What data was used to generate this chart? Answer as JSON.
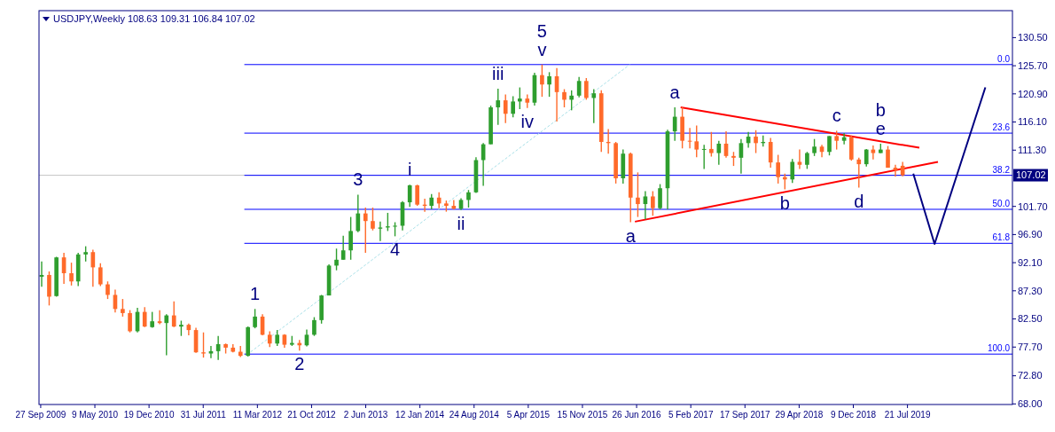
{
  "chart_data": {
    "type": "candlestick",
    "title": "USDJPY,Weekly  108.63 109.31 106.84 107.02",
    "x": [
      "2009-10",
      "2009-11",
      "2009-12",
      "2010-01",
      "2010-02",
      "2010-03",
      "2010-04",
      "2010-05",
      "2010-06",
      "2010-07",
      "2010-08",
      "2010-09",
      "2010-10",
      "2010-11",
      "2010-12",
      "2011-01",
      "2011-02",
      "2011-03",
      "2011-04",
      "2011-05",
      "2011-06",
      "2011-07",
      "2011-08",
      "2011-09",
      "2011-10",
      "2011-11",
      "2011-12",
      "2012-01",
      "2012-02",
      "2012-03",
      "2012-04",
      "2012-05",
      "2012-06",
      "2012-07",
      "2012-08",
      "2012-09",
      "2012-10",
      "2012-11",
      "2012-12",
      "2013-01",
      "2013-02",
      "2013-03",
      "2013-04",
      "2013-05",
      "2013-06",
      "2013-07",
      "2013-08",
      "2013-09",
      "2013-10",
      "2013-11",
      "2013-12",
      "2014-01",
      "2014-02",
      "2014-03",
      "2014-04",
      "2014-05",
      "2014-06",
      "2014-07",
      "2014-08",
      "2014-09",
      "2014-10",
      "2014-11",
      "2014-12",
      "2015-01",
      "2015-02",
      "2015-03",
      "2015-04",
      "2015-05",
      "2015-06",
      "2015-07",
      "2015-08",
      "2015-09",
      "2015-10",
      "2015-11",
      "2015-12",
      "2016-01",
      "2016-02",
      "2016-03",
      "2016-04",
      "2016-05",
      "2016-06",
      "2016-07",
      "2016-08",
      "2016-09",
      "2016-10",
      "2016-11",
      "2016-12",
      "2017-01",
      "2017-02",
      "2017-03",
      "2017-04",
      "2017-05",
      "2017-06",
      "2017-07",
      "2017-08",
      "2017-09",
      "2017-10",
      "2017-11",
      "2017-12",
      "2018-01",
      "2018-02",
      "2018-03",
      "2018-04",
      "2018-05",
      "2018-06",
      "2018-07",
      "2018-08",
      "2018-09",
      "2018-10",
      "2018-11",
      "2018-12",
      "2019-01",
      "2019-02",
      "2019-03",
      "2019-04",
      "2019-05",
      "2019-06",
      "2019-07"
    ],
    "ohlc": [
      [
        89.7,
        92.3,
        88.0,
        90.0
      ],
      [
        90.0,
        90.6,
        84.8,
        86.3
      ],
      [
        86.4,
        93.1,
        86.3,
        93.0
      ],
      [
        93.0,
        93.8,
        88.5,
        90.3
      ],
      [
        90.3,
        92.1,
        88.2,
        88.9
      ],
      [
        88.9,
        93.8,
        88.1,
        93.5
      ],
      [
        93.5,
        94.9,
        92.3,
        93.9
      ],
      [
        93.9,
        94.3,
        88.0,
        91.3
      ],
      [
        91.3,
        92.0,
        88.1,
        88.4
      ],
      [
        88.4,
        88.9,
        85.9,
        86.6
      ],
      [
        86.6,
        87.5,
        83.6,
        84.2
      ],
      [
        84.2,
        85.9,
        82.9,
        83.5
      ],
      [
        83.5,
        84.0,
        80.2,
        80.4
      ],
      [
        80.4,
        84.4,
        80.2,
        83.7
      ],
      [
        83.7,
        84.5,
        81.1,
        81.2
      ],
      [
        81.1,
        83.7,
        81.0,
        82.1
      ],
      [
        82.1,
        84.0,
        81.6,
        81.8
      ],
      [
        81.8,
        83.3,
        76.3,
        83.1
      ],
      [
        83.1,
        85.5,
        81.1,
        81.2
      ],
      [
        81.2,
        82.2,
        79.6,
        81.5
      ],
      [
        81.5,
        81.7,
        79.7,
        80.6
      ],
      [
        80.6,
        81.0,
        76.7,
        76.8
      ],
      [
        76.8,
        80.2,
        75.9,
        76.6
      ],
      [
        76.6,
        77.9,
        75.8,
        77.0
      ],
      [
        77.0,
        79.6,
        75.5,
        78.2
      ],
      [
        78.2,
        78.3,
        76.6,
        77.6
      ],
      [
        77.6,
        78.2,
        76.8,
        76.9
      ],
      [
        76.9,
        77.9,
        76.0,
        76.2
      ],
      [
        76.2,
        81.2,
        76.1,
        81.1
      ],
      [
        81.1,
        84.2,
        80.9,
        82.9
      ],
      [
        82.9,
        83.3,
        79.7,
        79.8
      ],
      [
        79.8,
        80.4,
        77.7,
        78.3
      ],
      [
        78.3,
        80.6,
        77.9,
        79.8
      ],
      [
        79.8,
        79.9,
        77.6,
        78.1
      ],
      [
        78.1,
        79.6,
        77.9,
        78.4
      ],
      [
        78.4,
        78.9,
        77.1,
        78.0
      ],
      [
        78.0,
        80.7,
        77.8,
        79.8
      ],
      [
        79.8,
        82.8,
        79.6,
        82.3
      ],
      [
        82.3,
        86.6,
        81.7,
        86.5
      ],
      [
        86.5,
        91.8,
        86.5,
        91.6
      ],
      [
        91.6,
        94.5,
        90.8,
        92.6
      ],
      [
        92.6,
        96.7,
        92.6,
        94.2
      ],
      [
        94.2,
        99.9,
        92.6,
        97.5
      ],
      [
        97.5,
        103.7,
        97.3,
        100.5
      ],
      [
        100.5,
        101.5,
        93.8,
        99.2
      ],
      [
        99.2,
        101.5,
        97.6,
        97.9
      ],
      [
        97.9,
        99.1,
        95.8,
        98.1
      ],
      [
        98.1,
        100.6,
        97.5,
        98.3
      ],
      [
        98.3,
        99.0,
        96.6,
        98.4
      ],
      [
        98.4,
        102.6,
        97.6,
        102.4
      ],
      [
        102.4,
        105.4,
        101.6,
        105.3
      ],
      [
        105.3,
        105.4,
        101.8,
        102.0
      ],
      [
        102.0,
        103.0,
        100.8,
        101.8
      ],
      [
        101.8,
        103.8,
        101.2,
        103.2
      ],
      [
        103.2,
        104.1,
        101.4,
        102.2
      ],
      [
        102.2,
        102.7,
        100.8,
        101.8
      ],
      [
        101.8,
        102.8,
        101.2,
        101.3
      ],
      [
        101.3,
        103.1,
        101.1,
        102.8
      ],
      [
        102.8,
        104.5,
        101.5,
        104.1
      ],
      [
        104.1,
        110.1,
        104.0,
        109.6
      ],
      [
        109.6,
        112.5,
        105.2,
        112.3
      ],
      [
        112.3,
        118.9,
        112.3,
        118.6
      ],
      [
        118.6,
        121.8,
        115.6,
        119.8
      ],
      [
        119.8,
        120.8,
        115.9,
        117.5
      ],
      [
        117.5,
        120.5,
        116.9,
        119.6
      ],
      [
        119.6,
        122.0,
        118.3,
        120.1
      ],
      [
        120.1,
        120.8,
        118.5,
        119.4
      ],
      [
        119.4,
        124.5,
        118.9,
        124.1
      ],
      [
        124.1,
        125.9,
        120.4,
        122.5
      ],
      [
        122.5,
        124.6,
        120.4,
        123.9
      ],
      [
        123.9,
        125.3,
        116.2,
        121.2
      ],
      [
        121.2,
        121.7,
        118.6,
        119.9
      ],
      [
        119.9,
        121.5,
        118.1,
        120.6
      ],
      [
        120.6,
        123.8,
        120.3,
        123.1
      ],
      [
        123.1,
        123.6,
        119.9,
        120.2
      ],
      [
        120.2,
        121.7,
        115.9,
        121.0
      ],
      [
        121.0,
        121.5,
        111.0,
        112.7
      ],
      [
        112.7,
        114.9,
        110.7,
        112.5
      ],
      [
        112.5,
        112.7,
        105.6,
        106.5
      ],
      [
        106.5,
        111.4,
        105.6,
        110.7
      ],
      [
        110.7,
        110.9,
        99.0,
        103.2
      ],
      [
        103.2,
        107.5,
        99.9,
        102.1
      ],
      [
        102.1,
        104.3,
        99.5,
        103.4
      ],
      [
        103.4,
        104.3,
        100.1,
        101.4
      ],
      [
        101.4,
        105.5,
        101.2,
        104.8
      ],
      [
        104.8,
        114.8,
        101.2,
        114.5
      ],
      [
        114.5,
        118.6,
        112.9,
        117.0
      ],
      [
        117.0,
        118.6,
        111.6,
        112.9
      ],
      [
        112.9,
        115.1,
        111.6,
        112.8
      ],
      [
        112.8,
        115.5,
        110.1,
        111.4
      ],
      [
        111.4,
        112.2,
        108.1,
        111.5
      ],
      [
        111.5,
        114.4,
        110.2,
        110.8
      ],
      [
        110.8,
        112.9,
        108.8,
        112.4
      ],
      [
        112.4,
        114.5,
        110.0,
        110.3
      ],
      [
        110.3,
        111.0,
        108.6,
        110.0
      ],
      [
        110.0,
        113.2,
        107.3,
        112.5
      ],
      [
        112.5,
        114.4,
        111.7,
        113.6
      ],
      [
        113.6,
        114.7,
        110.8,
        112.5
      ],
      [
        112.5,
        113.8,
        111.9,
        112.7
      ],
      [
        112.7,
        113.4,
        108.3,
        109.2
      ],
      [
        109.2,
        110.5,
        105.6,
        106.7
      ],
      [
        106.7,
        107.3,
        104.6,
        106.3
      ],
      [
        106.3,
        109.8,
        105.7,
        109.3
      ],
      [
        109.3,
        111.4,
        108.1,
        108.8
      ],
      [
        108.8,
        111.0,
        108.1,
        110.8
      ],
      [
        110.8,
        113.2,
        110.3,
        111.9
      ],
      [
        111.9,
        112.2,
        110.1,
        111.0
      ],
      [
        111.0,
        113.7,
        110.4,
        113.7
      ],
      [
        113.7,
        114.6,
        111.4,
        112.9
      ],
      [
        112.9,
        114.2,
        112.3,
        113.5
      ],
      [
        113.5,
        113.8,
        109.5,
        109.7
      ],
      [
        109.7,
        110.0,
        104.9,
        108.9
      ],
      [
        108.9,
        111.5,
        108.5,
        111.4
      ],
      [
        111.4,
        112.1,
        109.7,
        110.8
      ],
      [
        110.8,
        112.4,
        110.8,
        111.4
      ],
      [
        111.4,
        112.0,
        108.3,
        108.3
      ],
      [
        108.3,
        108.8,
        106.8,
        107.9
      ],
      [
        108.63,
        109.31,
        106.84,
        107.02
      ]
    ],
    "colors": [
      "#2e9e2e",
      "#ff6a2a",
      "#2e9e2e",
      "#ff6a2a",
      "#ff6a2a",
      "#2e9e2e",
      "#2e9e2e",
      "#ff6a2a",
      "#ff6a2a",
      "#ff6a2a",
      "#ff6a2a",
      "#ff6a2a",
      "#ff6a2a",
      "#2e9e2e",
      "#ff6a2a",
      "#2e9e2e",
      "#ff6a2a",
      "#2e9e2e",
      "#ff6a2a",
      "#2e9e2e",
      "#ff6a2a",
      "#ff6a2a",
      "#ff6a2a",
      "#2e9e2e",
      "#2e9e2e",
      "#ff6a2a",
      "#ff6a2a",
      "#ff6a2a",
      "#2e9e2e",
      "#2e9e2e",
      "#ff6a2a",
      "#ff6a2a",
      "#2e9e2e",
      "#ff6a2a",
      "#2e9e2e",
      "#ff6a2a",
      "#2e9e2e",
      "#2e9e2e",
      "#2e9e2e",
      "#2e9e2e",
      "#2e9e2e",
      "#2e9e2e",
      "#2e9e2e",
      "#2e9e2e",
      "#ff6a2a",
      "#ff6a2a",
      "#2e9e2e",
      "#2e9e2e",
      "#2e9e2e",
      "#2e9e2e",
      "#2e9e2e",
      "#ff6a2a",
      "#ff6a2a",
      "#2e9e2e",
      "#ff6a2a",
      "#ff6a2a",
      "#ff6a2a",
      "#2e9e2e",
      "#2e9e2e",
      "#2e9e2e",
      "#2e9e2e",
      "#2e9e2e",
      "#2e9e2e",
      "#ff6a2a",
      "#2e9e2e",
      "#2e9e2e",
      "#ff6a2a",
      "#2e9e2e",
      "#ff6a2a",
      "#2e9e2e",
      "#ff6a2a",
      "#ff6a2a",
      "#2e9e2e",
      "#2e9e2e",
      "#ff6a2a",
      "#2e9e2e",
      "#ff6a2a",
      "#ff6a2a",
      "#ff6a2a",
      "#2e9e2e",
      "#ff6a2a",
      "#ff6a2a",
      "#2e9e2e",
      "#ff6a2a",
      "#2e9e2e",
      "#2e9e2e",
      "#2e9e2e",
      "#ff6a2a",
      "#ff6a2a",
      "#ff6a2a",
      "#2e9e2e",
      "#ff6a2a",
      "#2e9e2e",
      "#ff6a2a",
      "#ff6a2a",
      "#2e9e2e",
      "#2e9e2e",
      "#ff6a2a",
      "#2e9e2e",
      "#ff6a2a",
      "#ff6a2a",
      "#ff6a2a",
      "#2e9e2e",
      "#ff6a2a",
      "#2e9e2e",
      "#2e9e2e",
      "#ff6a2a",
      "#2e9e2e",
      "#ff6a2a",
      "#2e9e2e",
      "#ff6a2a",
      "#ff6a2a",
      "#2e9e2e",
      "#ff6a2a",
      "#2e9e2e",
      "#ff6a2a",
      "#ff6a2a",
      "#ff6a2a"
    ],
    "series": [
      {
        "type": "line",
        "color": "#a8e0e8",
        "line_style": "dashed",
        "x": [
          "2012-01-31",
          "2016-05-29"
        ],
        "values": [
          76.5,
          125.9
        ]
      },
      {
        "type": "line",
        "color": "#ff0000",
        "x": [
          "2016-12-25",
          "2019-09-08"
        ],
        "values": [
          118.6,
          111.7
        ]
      },
      {
        "type": "line",
        "color": "#ff0000",
        "x": [
          "2016-06-19",
          "2019-11-24"
        ],
        "values": [
          99.1,
          109.3
        ]
      },
      {
        "type": "line",
        "color": "#000080",
        "x": [
          "2019-08-14",
          "2019-11-10",
          "2020-06-07"
        ],
        "values": [
          107.3,
          95.3,
          122.0
        ]
      },
      {
        "type": "line",
        "color": "#0000ff",
        "x": [
          "2012-01-17",
          "2020-09-27"
        ],
        "values": [
          125.9,
          125.9
        ]
      },
      {
        "type": "line",
        "color": "#0000ff",
        "x": [
          "2012-01-17",
          "2020-09-27"
        ],
        "values": [
          114.2,
          114.2
        ]
      },
      {
        "type": "line",
        "color": "#0000ff",
        "x": [
          "2012-01-17",
          "2020-09-27"
        ],
        "values": [
          107.0,
          107.0
        ]
      },
      {
        "type": "line",
        "color": "#0000ff",
        "x": [
          "2012-01-17",
          "2020-09-27"
        ],
        "values": [
          101.2,
          101.2
        ]
      },
      {
        "type": "line",
        "color": "#0000ff",
        "x": [
          "2012-01-17",
          "2020-09-27"
        ],
        "values": [
          95.4,
          95.4
        ]
      },
      {
        "type": "line",
        "color": "#0000ff",
        "x": [
          "2012-01-17",
          "2020-09-27"
        ],
        "values": [
          76.5,
          76.5
        ]
      }
    ],
    "ref_lines": [
      {
        "axis": "y",
        "value": 107.02,
        "label": "107.02",
        "color": "#c8c8c8"
      }
    ],
    "annotations": [
      {
        "text": "0.0",
        "x": "2020-09-27",
        "y": 125.9
      },
      {
        "text": "23.6",
        "x": "2020-09-27",
        "y": 114.2
      },
      {
        "text": "38.2",
        "x": "2020-09-27",
        "y": 107.0
      },
      {
        "text": "50.0",
        "x": "2020-09-27",
        "y": 101.2
      },
      {
        "text": "61.8",
        "x": "2020-09-27",
        "y": 95.4
      },
      {
        "text": "100.0",
        "x": "2020-09-27",
        "y": 76.5
      },
      {
        "text": "1",
        "x": "2012-03",
        "y": 84.2
      },
      {
        "text": "2",
        "x": "2012-09",
        "y": 77.1
      },
      {
        "text": "3",
        "x": "2013-05",
        "y": 103.7
      },
      {
        "text": "4",
        "x": "2013-10",
        "y": 96.6
      },
      {
        "text": "i",
        "x": "2013-12",
        "y": 105.4
      },
      {
        "text": "ii",
        "x": "2014-07",
        "y": 101.1
      },
      {
        "text": "iii",
        "x": "2014-12",
        "y": 121.8
      },
      {
        "text": "iv",
        "x": "2015-04",
        "y": 118.5
      },
      {
        "text": "v",
        "x": "2015-06",
        "y": 125.9
      },
      {
        "text": "5",
        "x": "2015-06",
        "y": 125.9
      },
      {
        "text": "a",
        "x": "2016-06",
        "y": 99.0
      },
      {
        "text": "a",
        "x": "2016-12",
        "y": 118.6
      },
      {
        "text": "b",
        "x": "2018-03",
        "y": 104.6
      },
      {
        "text": "c",
        "x": "2018-10",
        "y": 114.6
      },
      {
        "text": "d",
        "x": "2019-01",
        "y": 104.9
      },
      {
        "text": "e",
        "x": "2019-04",
        "y": 112.4
      },
      {
        "text": "b",
        "x": "2019-04",
        "y": 112.4
      }
    ],
    "xlim": [
      "2009-09-20",
      "2020-09-27"
    ],
    "ylim": [
      67.9,
      135.1
    ],
    "xticks": [
      {
        "value": "2009-09-27",
        "label": "27 Sep 2009"
      },
      {
        "value": "2010-05-09",
        "label": "9 May 2010"
      },
      {
        "value": "2010-12-19",
        "label": "19 Dec 2010"
      },
      {
        "value": "2011-07-31",
        "label": "31 Jul 2011"
      },
      {
        "value": "2012-03-11",
        "label": "11 Mar 2012"
      },
      {
        "value": "2012-10-21",
        "label": "21 Oct 2012"
      },
      {
        "value": "2013-06-02",
        "label": "2 Jun 2013"
      },
      {
        "value": "2014-01-12",
        "label": "12 Jan 2014"
      },
      {
        "value": "2014-08-24",
        "label": "24 Aug 2014"
      },
      {
        "value": "2015-04-05",
        "label": "5 Apr 2015"
      },
      {
        "value": "2015-11-15",
        "label": "15 Nov 2015"
      },
      {
        "value": "2016-06-26",
        "label": "26 Jun 2016"
      },
      {
        "value": "2017-02-05",
        "label": "5 Feb 2017"
      },
      {
        "value": "2017-09-17",
        "label": "17 Sep 2017"
      },
      {
        "value": "2018-04-29",
        "label": "29 Apr 2018"
      },
      {
        "value": "2018-12-09",
        "label": "9 Dec 2018"
      },
      {
        "value": "2019-07-21",
        "label": "21 Jul 2019"
      }
    ],
    "yticks": [
      {
        "value": 130.5,
        "label": "130.50"
      },
      {
        "value": 125.7,
        "label": "125.70"
      },
      {
        "value": 120.9,
        "label": "120.90"
      },
      {
        "value": 116.1,
        "label": "116.10"
      },
      {
        "value": 111.3,
        "label": "111.30"
      },
      {
        "value": 101.7,
        "label": "101.70"
      },
      {
        "value": 96.9,
        "label": "96.90"
      },
      {
        "value": 92.1,
        "label": "92.10"
      },
      {
        "value": 87.3,
        "label": "87.30"
      },
      {
        "value": 82.5,
        "label": "82.50"
      },
      {
        "value": 77.7,
        "label": "77.70"
      },
      {
        "value": 72.8,
        "label": "72.80"
      },
      {
        "value": 68.0,
        "label": "68.00"
      }
    ]
  }
}
